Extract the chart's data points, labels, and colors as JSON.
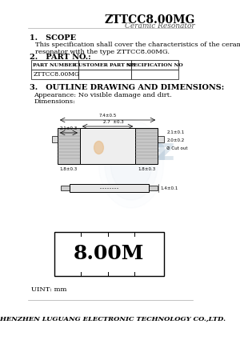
{
  "title": "ZTTCC8.00MG",
  "subtitle": "Ceramic Resonator",
  "section1_title": "1.   SCOPE",
  "section1_text": "This specification shall cover the characteristics of the ceramic\nresonator with the type ZTTCC8.00MG.",
  "section2_title": "2.   PART NO.:",
  "table_headers": [
    "PART NUMBER",
    "CUSTOMER PART NO",
    "SPECIFICATION NO"
  ],
  "table_data": [
    "ZTTCC8.00MG",
    "",
    ""
  ],
  "section3_title": "3.   OUTLINE DRAWING AND DIMENSIONS:",
  "appearance_text": "Appearance: No visible damage and dirt.",
  "dimensions_text": "Dimensions:",
  "label_freq": "8.00M",
  "unit_text": "UINT: mm",
  "footer": "SHENZHEN LUGUANG ELECTRONIC TECHNOLOGY CO.,LTD.",
  "bg_color": "#ffffff",
  "text_color": "#000000",
  "watermark_color": "#c8d8e8"
}
